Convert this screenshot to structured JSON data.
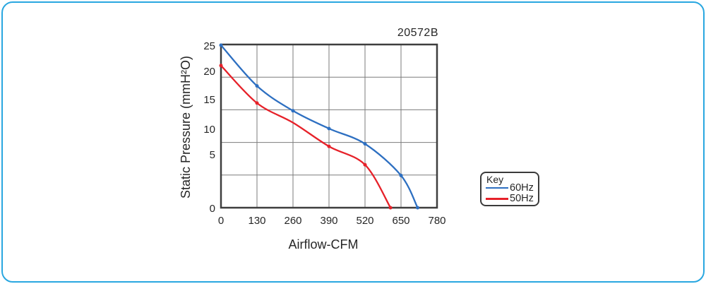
{
  "frame": {
    "color": "#29a7e0"
  },
  "text_color": "#262626",
  "chart_data": {
    "type": "line",
    "part_label": "20572B",
    "xlabel": "Airflow-CFM",
    "ylabel": "Static Pressure (mmH²O)",
    "xlim": [
      0,
      780
    ],
    "ylim": [
      0,
      25
    ],
    "x_ticks": [
      0,
      130,
      260,
      390,
      520,
      650,
      780
    ],
    "y_ticks": [
      25,
      20,
      15,
      10,
      5,
      0
    ],
    "grid": true,
    "grid_color": "#7b7b7b",
    "axis_border_color": "#3e3e3e",
    "legend": {
      "title": "Key",
      "position": "right-of-plot"
    },
    "series": [
      {
        "name": "60Hz",
        "color": "#2d6fc1",
        "points": [
          [
            0,
            25
          ],
          [
            130,
            17.3
          ],
          [
            260,
            13
          ],
          [
            390,
            10
          ],
          [
            520,
            7
          ],
          [
            650,
            3
          ],
          [
            710,
            0
          ]
        ],
        "markers": [
          1,
          1,
          1,
          1,
          1,
          1,
          1
        ]
      },
      {
        "name": "50Hz",
        "color": "#e62129",
        "points": [
          [
            0,
            21
          ],
          [
            130,
            14.3
          ],
          [
            260,
            11
          ],
          [
            390,
            6.5
          ],
          [
            520,
            4
          ],
          [
            612,
            0
          ]
        ],
        "markers": [
          1,
          1,
          0,
          1,
          1,
          1
        ]
      }
    ]
  }
}
